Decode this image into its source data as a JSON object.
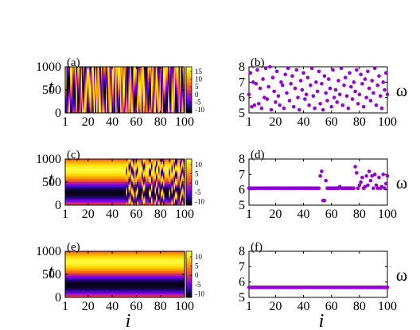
{
  "colors": {
    "scatter": "#9400D3",
    "colormap": [
      "#000000",
      "#2b0a8f",
      "#7f00ff",
      "#c02a88",
      "#ff5a2a",
      "#ff9a00",
      "#ffd400",
      "#ffff40"
    ]
  },
  "chart_data": [
    {
      "panel": "(a)",
      "type": "heatmap",
      "xlabel": "",
      "ylabel": "t",
      "xlim": [
        1,
        100
      ],
      "ylim": [
        0,
        1000
      ],
      "x_ticks": [
        "1",
        "20",
        "40",
        "60",
        "80",
        "100"
      ],
      "y_ticks": [
        "0",
        "500",
        "1000"
      ],
      "colorbar": {
        "range": [
          -12,
          18
        ],
        "ticks": [
          "15",
          "10",
          "5",
          "0",
          "-5",
          "-10"
        ]
      },
      "pattern": "incoherent oscillations across all i"
    },
    {
      "panel": "(b)",
      "type": "scatter",
      "xlabel": "",
      "ylabel": "ω",
      "xlim": [
        1,
        100
      ],
      "ylim": [
        5,
        8
      ],
      "x_ticks": [
        "1",
        "20",
        "40",
        "60",
        "80",
        "100"
      ],
      "y_ticks": [
        "5",
        "6",
        "7",
        "8"
      ],
      "x": [
        1,
        2,
        3,
        4,
        5,
        6,
        7,
        8,
        9,
        10,
        11,
        12,
        13,
        14,
        15,
        16,
        17,
        18,
        19,
        20,
        21,
        22,
        23,
        24,
        25,
        26,
        27,
        28,
        29,
        30,
        31,
        32,
        33,
        34,
        35,
        36,
        37,
        38,
        39,
        40,
        41,
        42,
        43,
        44,
        45,
        46,
        47,
        48,
        49,
        50,
        51,
        52,
        53,
        54,
        55,
        56,
        57,
        58,
        59,
        60,
        61,
        62,
        63,
        64,
        65,
        66,
        67,
        68,
        69,
        70,
        71,
        72,
        73,
        74,
        75,
        76,
        77,
        78,
        79,
        80,
        81,
        82,
        83,
        84,
        85,
        86,
        87,
        88,
        89,
        90,
        91,
        92,
        93,
        94,
        95,
        96,
        97,
        98,
        99,
        100
      ],
      "y": [
        6.2,
        7.6,
        5.4,
        7.0,
        5.5,
        6.9,
        7.8,
        5.6,
        6.6,
        5.3,
        7.2,
        6.0,
        7.9,
        5.9,
        6.7,
        8.0,
        5.2,
        7.3,
        6.4,
        5.7,
        7.7,
        6.1,
        5.5,
        7.0,
        6.8,
        5.3,
        7.5,
        6.3,
        7.9,
        5.8,
        6.9,
        7.4,
        5.4,
        6.6,
        7.8,
        6.0,
        5.2,
        7.1,
        6.5,
        7.6,
        5.9,
        6.2,
        7.3,
        5.5,
        6.8,
        7.9,
        6.1,
        5.3,
        7.0,
        6.4,
        7.7,
        5.6,
        6.9,
        5.2,
        7.4,
        6.3,
        5.8,
        7.2,
        6.6,
        5.4,
        7.8,
        6.0,
        6.5,
        5.7,
        7.1,
        6.2,
        7.9,
        5.5,
        6.8,
        7.3,
        6.1,
        5.3,
        7.6,
        6.7,
        5.9,
        7.0,
        6.4,
        7.8,
        5.6,
        6.2,
        7.5,
        6.9,
        5.4,
        7.2,
        6.0,
        7.7,
        6.6,
        5.8,
        7.1,
        6.3,
        7.9,
        5.5,
        6.8,
        7.4,
        6.1,
        5.3,
        7.0,
        6.5,
        7.6,
        6.2
      ]
    },
    {
      "panel": "(c)",
      "type": "heatmap",
      "xlabel": "",
      "ylabel": "t",
      "xlim": [
        1,
        100
      ],
      "ylim": [
        0,
        1000
      ],
      "x_ticks": [
        "1",
        "20",
        "40",
        "60",
        "80",
        "100"
      ],
      "y_ticks": [
        "0",
        "500",
        "1000"
      ],
      "colorbar": {
        "range": [
          -12,
          13
        ],
        "ticks": [
          "10",
          "5",
          "0",
          "-5",
          "-10"
        ]
      },
      "pattern": "coherent band for i < 52, incoherent stripes for i >= 52 (chimera)"
    },
    {
      "panel": "(d)",
      "type": "scatter",
      "xlabel": "",
      "ylabel": "ω",
      "xlim": [
        1,
        100
      ],
      "ylim": [
        5,
        8
      ],
      "x_ticks": [
        "1",
        "20",
        "40",
        "60",
        "80",
        "100"
      ],
      "y_ticks": [
        "5",
        "6",
        "7",
        "8"
      ],
      "x": [
        1,
        2,
        3,
        4,
        5,
        6,
        7,
        8,
        9,
        10,
        11,
        12,
        13,
        14,
        15,
        16,
        17,
        18,
        19,
        20,
        21,
        22,
        23,
        24,
        25,
        26,
        27,
        28,
        29,
        30,
        31,
        32,
        33,
        34,
        35,
        36,
        37,
        38,
        39,
        40,
        41,
        42,
        43,
        44,
        45,
        46,
        47,
        48,
        49,
        50,
        51,
        52,
        53,
        54,
        55,
        56,
        57,
        58,
        59,
        60,
        61,
        62,
        63,
        64,
        65,
        66,
        67,
        68,
        69,
        70,
        71,
        72,
        73,
        74,
        75,
        76,
        77,
        78,
        79,
        80,
        81,
        82,
        83,
        84,
        85,
        86,
        87,
        88,
        89,
        90,
        91,
        92,
        93,
        94,
        95,
        96,
        97,
        98,
        99,
        100
      ],
      "y": [
        6.1,
        6.1,
        6.1,
        6.1,
        6.1,
        6.1,
        6.1,
        6.1,
        6.1,
        6.1,
        6.1,
        6.1,
        6.1,
        6.1,
        6.1,
        6.1,
        6.1,
        6.1,
        6.1,
        6.1,
        6.1,
        6.1,
        6.1,
        6.1,
        6.1,
        6.1,
        6.1,
        6.1,
        6.1,
        6.1,
        6.1,
        6.1,
        6.1,
        6.1,
        6.1,
        6.1,
        6.1,
        6.1,
        6.1,
        6.1,
        6.1,
        6.1,
        6.1,
        6.1,
        6.1,
        6.1,
        6.1,
        6.1,
        6.1,
        6.1,
        6.1,
        6.9,
        7.2,
        5.3,
        5.3,
        6.6,
        6.1,
        6.1,
        6.1,
        6.1,
        6.1,
        6.1,
        6.1,
        6.1,
        6.1,
        6.2,
        6.1,
        6.1,
        6.1,
        6.1,
        6.1,
        6.1,
        6.1,
        6.1,
        6.1,
        6.1,
        7.5,
        7.1,
        6.1,
        6.3,
        6.5,
        6.8,
        6.1,
        6.2,
        6.9,
        6.3,
        7.2,
        6.6,
        6.9,
        6.1,
        7.0,
        6.3,
        6.1,
        6.8,
        6.1,
        6.2,
        7.0,
        6.1,
        6.4,
        6.9
      ]
    },
    {
      "panel": "(e)",
      "type": "heatmap",
      "xlabel": "i",
      "ylabel": "t",
      "xlim": [
        1,
        100
      ],
      "ylim": [
        0,
        1000
      ],
      "x_ticks": [
        "1",
        "20",
        "40",
        "60",
        "80",
        "100"
      ],
      "y_ticks": [
        "0",
        "500",
        "1000"
      ],
      "colorbar": {
        "range": [
          -12,
          13
        ],
        "ticks": [
          "10",
          "5",
          "0",
          "-5",
          "-10"
        ]
      },
      "pattern": "fully coherent horizontal bands"
    },
    {
      "panel": "(f)",
      "type": "scatter",
      "xlabel": "i",
      "ylabel": "ω",
      "xlim": [
        1,
        100
      ],
      "ylim": [
        5,
        8
      ],
      "x_ticks": [
        "1",
        "20",
        "40",
        "60",
        "80",
        "100"
      ],
      "y_ticks": [
        "5",
        "6",
        "7",
        "8"
      ],
      "constant_y": 5.65,
      "n_points": 100
    }
  ]
}
